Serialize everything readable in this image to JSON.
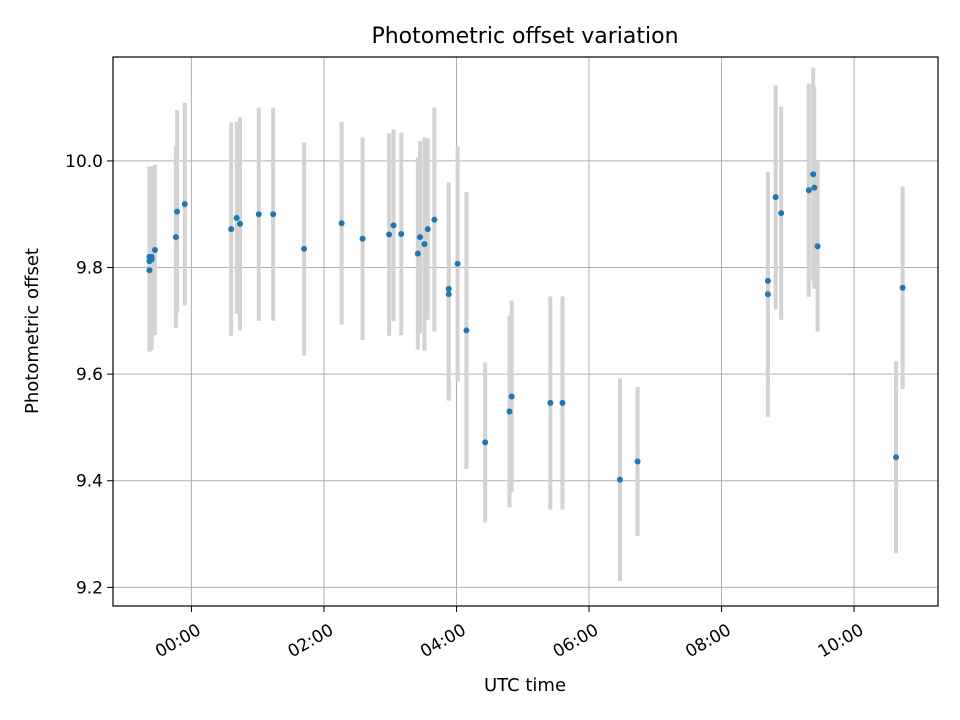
{
  "chart_data": {
    "type": "scatter",
    "title": "Photometric offset variation",
    "xlabel": "UTC time",
    "ylabel": "Photometric offset",
    "x_unit": "UTC time (HH:MM)",
    "xlim": [
      "-1:11",
      "11:16"
    ],
    "ylim": [
      9.165,
      10.195
    ],
    "xticks": [
      "00:00",
      "02:00",
      "04:00",
      "06:00",
      "08:00",
      "10:00"
    ],
    "yticks": [
      "9.2",
      "9.4",
      "9.6",
      "9.8",
      "10.0"
    ],
    "grid": true,
    "marker_color": "#1f77b4",
    "errorbar_color": "#d3d3d3",
    "points": [
      {
        "x": "-0:38",
        "y": 9.812,
        "yerr": 0.17
      },
      {
        "x": "-0:38",
        "y": 9.82,
        "yerr": 0.17
      },
      {
        "x": "-0:38",
        "y": 9.795,
        "yerr": 0.15
      },
      {
        "x": "-0:36",
        "y": 9.82,
        "yerr": 0.17
      },
      {
        "x": "-0:36",
        "y": 9.815,
        "yerr": 0.17
      },
      {
        "x": "-0:33",
        "y": 9.833,
        "yerr": 0.16
      },
      {
        "x": "-0:14",
        "y": 9.857,
        "yerr": 0.17
      },
      {
        "x": "-0:13",
        "y": 9.905,
        "yerr": 0.19
      },
      {
        "x": "-0:06",
        "y": 9.919,
        "yerr": 0.19
      },
      {
        "x": "0:36",
        "y": 9.872,
        "yerr": 0.2
      },
      {
        "x": "0:41",
        "y": 9.893,
        "yerr": 0.18
      },
      {
        "x": "0:44",
        "y": 9.882,
        "yerr": 0.2
      },
      {
        "x": "1:01",
        "y": 9.9,
        "yerr": 0.2
      },
      {
        "x": "1:14",
        "y": 9.9,
        "yerr": 0.2
      },
      {
        "x": "1:42",
        "y": 9.835,
        "yerr": 0.2
      },
      {
        "x": "2:16",
        "y": 9.883,
        "yerr": 0.19
      },
      {
        "x": "2:35",
        "y": 9.854,
        "yerr": 0.19
      },
      {
        "x": "2:59",
        "y": 9.862,
        "yerr": 0.19
      },
      {
        "x": "3:03",
        "y": 9.879,
        "yerr": 0.18
      },
      {
        "x": "3:10",
        "y": 9.863,
        "yerr": 0.19
      },
      {
        "x": "3:25",
        "y": 9.826,
        "yerr": 0.18
      },
      {
        "x": "3:27",
        "y": 9.857,
        "yerr": 0.18
      },
      {
        "x": "3:31",
        "y": 9.844,
        "yerr": 0.2
      },
      {
        "x": "3:34",
        "y": 9.872,
        "yerr": 0.17
      },
      {
        "x": "3:40",
        "y": 9.89,
        "yerr": 0.21
      },
      {
        "x": "3:53",
        "y": 9.76,
        "yerr": 0.2
      },
      {
        "x": "3:53",
        "y": 9.75,
        "yerr": 0.2
      },
      {
        "x": "4:01",
        "y": 9.807,
        "yerr": 0.22
      },
      {
        "x": "4:09",
        "y": 9.682,
        "yerr": 0.26
      },
      {
        "x": "4:26",
        "y": 9.472,
        "yerr": 0.15
      },
      {
        "x": "4:48",
        "y": 9.53,
        "yerr": 0.18
      },
      {
        "x": "4:50",
        "y": 9.558,
        "yerr": 0.18
      },
      {
        "x": "5:25",
        "y": 9.546,
        "yerr": 0.2
      },
      {
        "x": "5:36",
        "y": 9.546,
        "yerr": 0.2
      },
      {
        "x": "6:28",
        "y": 9.402,
        "yerr": 0.19
      },
      {
        "x": "6:44",
        "y": 9.436,
        "yerr": 0.14
      },
      {
        "x": "8:42",
        "y": 9.775,
        "yerr": 0.2
      },
      {
        "x": "8:42",
        "y": 9.75,
        "yerr": 0.23
      },
      {
        "x": "8:49",
        "y": 9.932,
        "yerr": 0.21
      },
      {
        "x": "8:54",
        "y": 9.902,
        "yerr": 0.2
      },
      {
        "x": "9:19",
        "y": 9.945,
        "yerr": 0.2
      },
      {
        "x": "9:23",
        "y": 9.975,
        "yerr": 0.2
      },
      {
        "x": "9:24",
        "y": 9.95,
        "yerr": 0.19
      },
      {
        "x": "9:27",
        "y": 9.84,
        "yerr": 0.16
      },
      {
        "x": "10:38",
        "y": 9.444,
        "yerr": 0.18
      },
      {
        "x": "10:44",
        "y": 9.762,
        "yerr": 0.19
      }
    ]
  }
}
